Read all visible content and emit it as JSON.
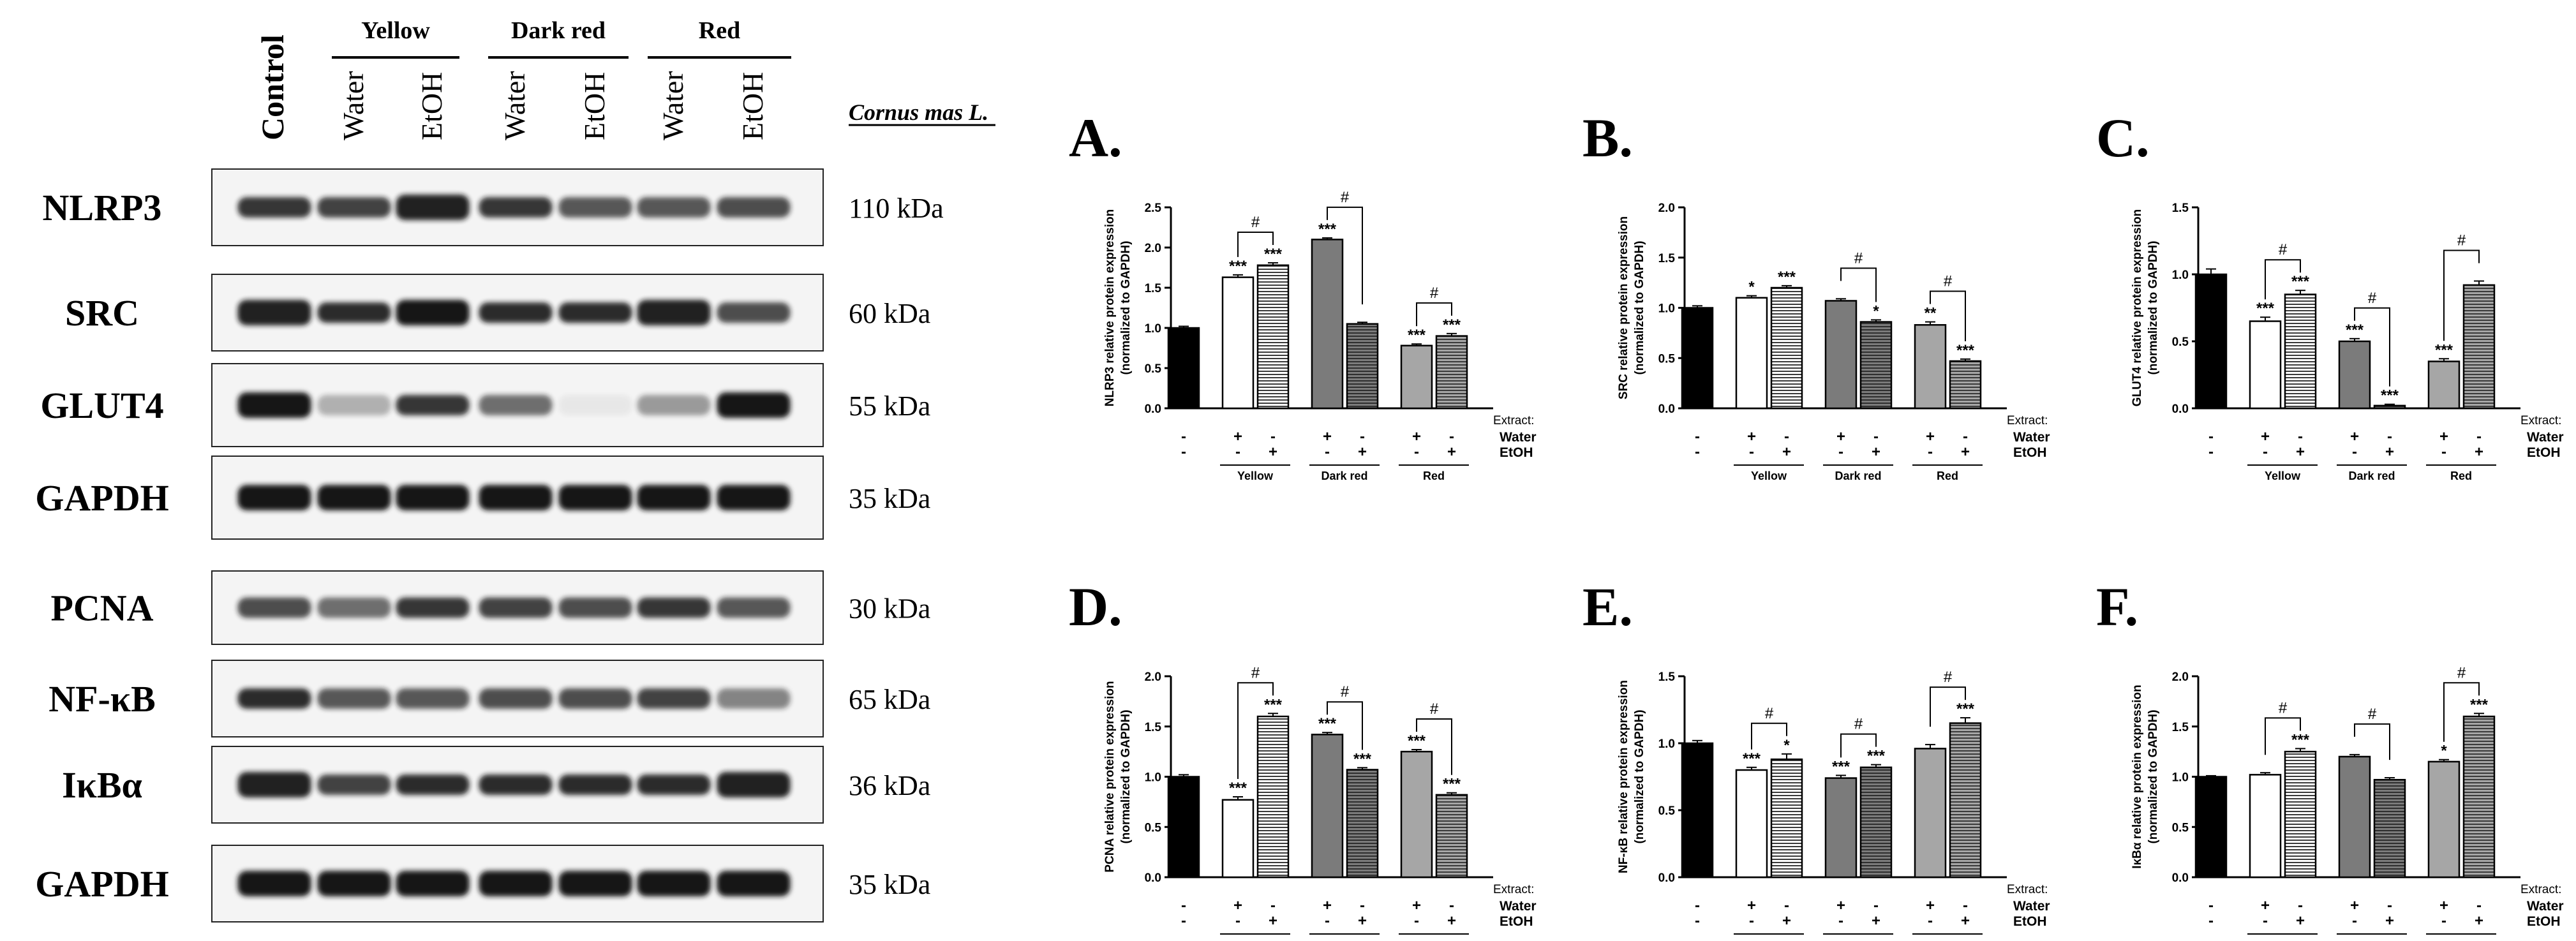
{
  "western_blot": {
    "conditions": [
      "Control",
      "Water",
      "EtOH",
      "Water",
      "EtOH",
      "Water",
      "EtOH"
    ],
    "groups": [
      "Yellow",
      "Dark red",
      "Red"
    ],
    "species": "Cornus mas L.",
    "blots": [
      {
        "protein": "NLRP3",
        "size": "110 kDa",
        "intensity": [
          0.85,
          0.8,
          0.95,
          0.85,
          0.7,
          0.7,
          0.75
        ]
      },
      {
        "protein": "SRC",
        "size": "60 kDa",
        "intensity": [
          0.95,
          0.9,
          1.0,
          0.9,
          0.9,
          0.95,
          0.75
        ]
      },
      {
        "protein": "GLUT4",
        "size": "55 kDa",
        "intensity": [
          1.0,
          0.3,
          0.85,
          0.6,
          0.05,
          0.4,
          1.0
        ]
      },
      {
        "protein": "GAPDH",
        "size": "35 kDa",
        "intensity": [
          1.0,
          1.0,
          1.0,
          1.0,
          1.0,
          1.0,
          1.0
        ]
      },
      {
        "protein": "PCNA",
        "size": "30 kDa",
        "intensity": [
          0.75,
          0.6,
          0.85,
          0.8,
          0.75,
          0.85,
          0.7
        ]
      },
      {
        "protein": "NF-κB",
        "size": "65 kDa",
        "intensity": [
          0.9,
          0.7,
          0.7,
          0.75,
          0.75,
          0.8,
          0.5
        ]
      },
      {
        "protein": "IκBα",
        "size": "36 kDa",
        "intensity": [
          0.95,
          0.8,
          0.9,
          0.9,
          0.9,
          0.9,
          0.95
        ]
      },
      {
        "protein": "GAPDH",
        "size": "35 kDa",
        "intensity": [
          1.0,
          1.0,
          1.0,
          1.0,
          1.0,
          1.0,
          1.0
        ]
      }
    ]
  },
  "chart_data": [
    {
      "type": "bar",
      "letter": "A.",
      "ylabel_line1": "NLRP3 relative protein expression",
      "ylabel_line2": "(normalized to GAPDH)",
      "ylim": [
        0,
        2.5
      ],
      "yticks": [
        "0.0",
        "0.5",
        "1.0",
        "1.5",
        "2.0",
        "2.5"
      ],
      "values": [
        1.0,
        1.63,
        1.78,
        2.1,
        1.05,
        0.78,
        0.9
      ],
      "errors": [
        0.02,
        0.03,
        0.03,
        0.02,
        0.02,
        0.02,
        0.03
      ],
      "stars": [
        "",
        "***",
        "***",
        "***",
        "",
        "***",
        "***"
      ],
      "hash": [
        true,
        true,
        true
      ]
    },
    {
      "type": "bar",
      "letter": "B.",
      "ylabel_line1": "SRC relative protein expression",
      "ylabel_line2": "(normalized to GAPDH)",
      "ylim": [
        0,
        2.0
      ],
      "yticks": [
        "0.0",
        "0.5",
        "1.0",
        "1.5",
        "2.0"
      ],
      "values": [
        1.0,
        1.1,
        1.2,
        1.07,
        0.86,
        0.83,
        0.47
      ],
      "errors": [
        0.02,
        0.02,
        0.02,
        0.02,
        0.02,
        0.03,
        0.02
      ],
      "stars": [
        "",
        "*",
        "***",
        "",
        "*",
        "**",
        "***"
      ],
      "hash": [
        false,
        true,
        true
      ]
    },
    {
      "type": "bar",
      "letter": "C.",
      "ylabel_line1": "GLUT4 relative protein expression",
      "ylabel_line2": "(normalized to GAPDH)",
      "ylim": [
        0,
        1.5
      ],
      "yticks": [
        "0.0",
        "0.5",
        "1.0",
        "1.5"
      ],
      "values": [
        1.0,
        0.65,
        0.85,
        0.5,
        0.02,
        0.35,
        0.92
      ],
      "errors": [
        0.04,
        0.03,
        0.03,
        0.02,
        0.01,
        0.02,
        0.03
      ],
      "stars": [
        "",
        "***",
        "***",
        "***",
        "***",
        "***",
        ""
      ],
      "hash": [
        true,
        true,
        true
      ]
    },
    {
      "type": "bar",
      "letter": "D.",
      "ylabel_line1": "PCNA relative protein expression",
      "ylabel_line2": "(normalized to GAPDH)",
      "ylim": [
        0,
        2.0
      ],
      "yticks": [
        "0.0",
        "0.5",
        "1.0",
        "1.5",
        "2.0"
      ],
      "values": [
        1.0,
        0.77,
        1.6,
        1.42,
        1.07,
        1.25,
        0.82
      ],
      "errors": [
        0.02,
        0.03,
        0.03,
        0.02,
        0.02,
        0.02,
        0.02
      ],
      "stars": [
        "",
        "***",
        "***",
        "***",
        "***",
        "***",
        "***"
      ],
      "hash": [
        true,
        true,
        true
      ]
    },
    {
      "type": "bar",
      "letter": "E.",
      "ylabel_line1": "NF-κB relative protein expression",
      "ylabel_line2": "(normalized to GAPDH)",
      "ylim": [
        0,
        1.5
      ],
      "yticks": [
        "0.0",
        "0.5",
        "1.0",
        "1.5"
      ],
      "values": [
        1.0,
        0.8,
        0.88,
        0.74,
        0.82,
        0.96,
        1.15
      ],
      "errors": [
        0.02,
        0.02,
        0.04,
        0.02,
        0.02,
        0.03,
        0.04
      ],
      "stars": [
        "",
        "***",
        "*",
        "***",
        "***",
        "",
        "***"
      ],
      "hash": [
        true,
        true,
        true
      ]
    },
    {
      "type": "bar",
      "letter": "F.",
      "ylabel_line1": "IκBα relative protein expression",
      "ylabel_line2": "(normalized to GAPDH)",
      "ylim": [
        0,
        2.0
      ],
      "yticks": [
        "0.0",
        "0.5",
        "1.0",
        "1.5",
        "2.0"
      ],
      "values": [
        1.0,
        1.02,
        1.25,
        1.2,
        0.97,
        1.15,
        1.6
      ],
      "errors": [
        0.01,
        0.02,
        0.03,
        0.02,
        0.02,
        0.02,
        0.03
      ],
      "stars": [
        "",
        "",
        "***",
        "",
        "",
        "*",
        "***"
      ],
      "hash": [
        true,
        true,
        true
      ]
    }
  ],
  "chart_labels": {
    "extract": "Extract:",
    "water": "Water",
    "etoh": "EtOH",
    "plus": "+",
    "minus": "-",
    "groups": [
      "Yellow",
      "Dark red",
      "Red"
    ],
    "hash_symbol": "#"
  },
  "colors": {
    "control": "#000000",
    "yellow": "#ffffff",
    "dark_red": "#7b7b7b",
    "red": "#a6a6a6",
    "hatch_stroke": "#3a3a3a",
    "blot_bg": "#f4f4f4",
    "band": "#141414"
  }
}
